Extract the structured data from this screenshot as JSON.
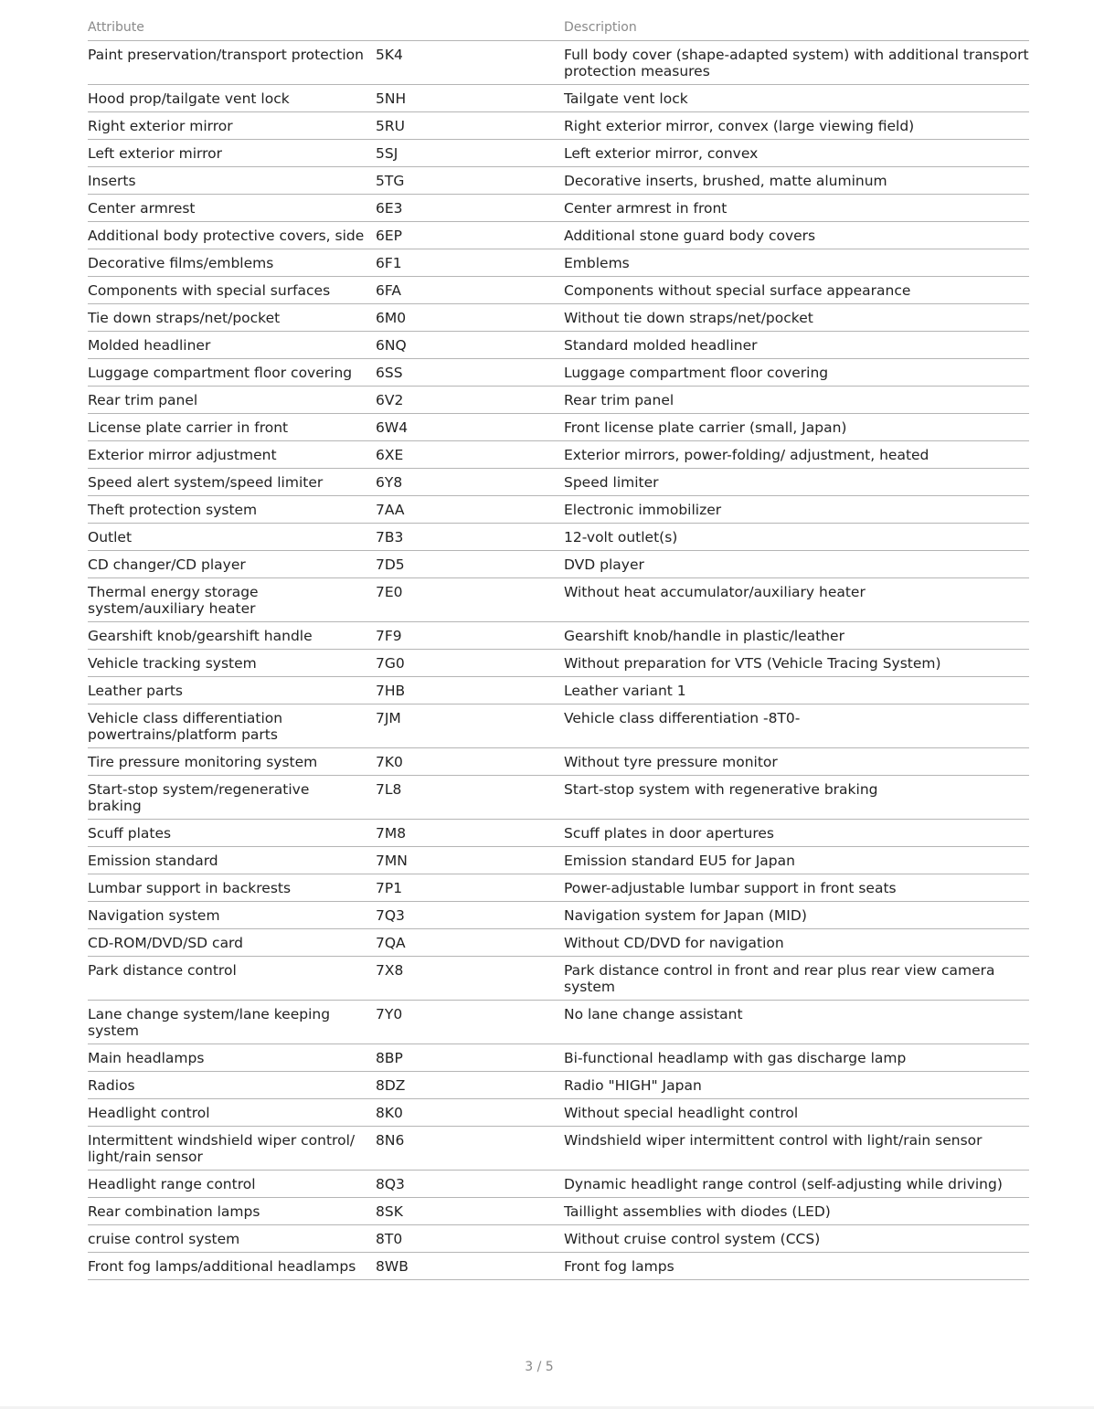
{
  "table": {
    "headers": {
      "attribute": "Attribute",
      "code": "",
      "description": "Description"
    },
    "rows": [
      [
        "Paint preservation/transport protection",
        "5K4",
        "Full body cover (shape-adapted system)  with additional transport protection  measures"
      ],
      [
        "Hood prop/tailgate vent lock",
        "5NH",
        "Tailgate vent lock"
      ],
      [
        "Right exterior mirror",
        "5RU",
        "Right exterior mirror, convex  (large viewing field)"
      ],
      [
        "Left exterior mirror",
        "5SJ",
        "Left exterior mirror, convex"
      ],
      [
        "Inserts",
        "5TG",
        "Decorative inserts, brushed, matte  aluminum"
      ],
      [
        "Center armrest",
        "6E3",
        "Center armrest in front"
      ],
      [
        "Additional body protective covers, side",
        "6EP",
        "Additional stone guard body covers"
      ],
      [
        "Decorative films/emblems",
        "6F1",
        "Emblems"
      ],
      [
        "Components with special surfaces",
        "6FA",
        "Components without special surface  appearance"
      ],
      [
        "Tie down straps/net/pocket",
        "6M0",
        "Without tie down straps/net/pocket"
      ],
      [
        "Molded headliner",
        "6NQ",
        "Standard molded headliner"
      ],
      [
        "Luggage compartment floor covering",
        "6SS",
        "Luggage compartment floor covering"
      ],
      [
        "Rear trim panel",
        "6V2",
        "Rear trim panel"
      ],
      [
        "License plate carrier in front",
        "6W4",
        "Front license plate carrier (small,  Japan)"
      ],
      [
        "Exterior mirror adjustment",
        "6XE",
        "Exterior mirrors, power-folding/  adjustment, heated"
      ],
      [
        "Speed alert system/speed limiter",
        "6Y8",
        "Speed limiter"
      ],
      [
        "Theft protection system",
        "7AA",
        "Electronic immobilizer"
      ],
      [
        "Outlet",
        "7B3",
        "12-volt outlet(s)"
      ],
      [
        "CD changer/CD player",
        "7D5",
        "DVD player"
      ],
      [
        "Thermal energy storage system/auxiliary  heater",
        "7E0",
        "Without heat accumulator/auxiliary  heater"
      ],
      [
        "Gearshift knob/gearshift handle",
        "7F9",
        "Gearshift knob/handle in plastic/leather"
      ],
      [
        "Vehicle tracking system",
        "7G0",
        "Without preparation for VTS (Vehicle Tracing System)"
      ],
      [
        "Leather parts",
        "7HB",
        "Leather variant 1"
      ],
      [
        "Vehicle class differentiation powertrains/platform parts",
        "7JM",
        "Vehicle class differentiation -8T0-"
      ],
      [
        "Tire pressure monitoring system",
        "7K0",
        "Without tyre pressure monitor"
      ],
      [
        "Start-stop system/regenerative braking",
        "7L8",
        "Start-stop system with regenerative  braking"
      ],
      [
        "Scuff plates",
        "7M8",
        "Scuff plates in door apertures"
      ],
      [
        "Emission standard",
        "7MN",
        "Emission standard EU5 for Japan"
      ],
      [
        "Lumbar support in backrests",
        "7P1",
        "Power-adjustable lumbar support in front  seats"
      ],
      [
        "Navigation system",
        "7Q3",
        "Navigation system for Japan (MID)"
      ],
      [
        "CD-ROM/DVD/SD card",
        "7QA",
        "Without CD/DVD for navigation"
      ],
      [
        "Park distance control",
        "7X8",
        "Park distance control in front and rear  plus rear view camera system"
      ],
      [
        "Lane change system/lane keeping system",
        "7Y0",
        "No lane change assistant"
      ],
      [
        "Main headlamps",
        "8BP",
        "Bi-functional headlamp with gas  discharge lamp"
      ],
      [
        "Radios",
        "8DZ",
        "Radio \"HIGH\" Japan"
      ],
      [
        "Headlight control",
        "8K0",
        "Without special headlight control"
      ],
      [
        "Intermittent windshield wiper control/  light/rain sensor",
        "8N6",
        "Windshield wiper intermittent control  with light/rain sensor"
      ],
      [
        "Headlight range control",
        "8Q3",
        "Dynamic headlight range control  (self-adjusting while driving)"
      ],
      [
        "Rear combination lamps",
        "8SK",
        "Taillight assemblies with diodes (LED)"
      ],
      [
        "cruise control system",
        "8T0",
        "Without cruise control system (CCS)"
      ],
      [
        "Front fog lamps/additional headlamps",
        "8WB",
        "Front fog lamps"
      ]
    ]
  },
  "footer": {
    "page_indicator": "3 / 5"
  }
}
